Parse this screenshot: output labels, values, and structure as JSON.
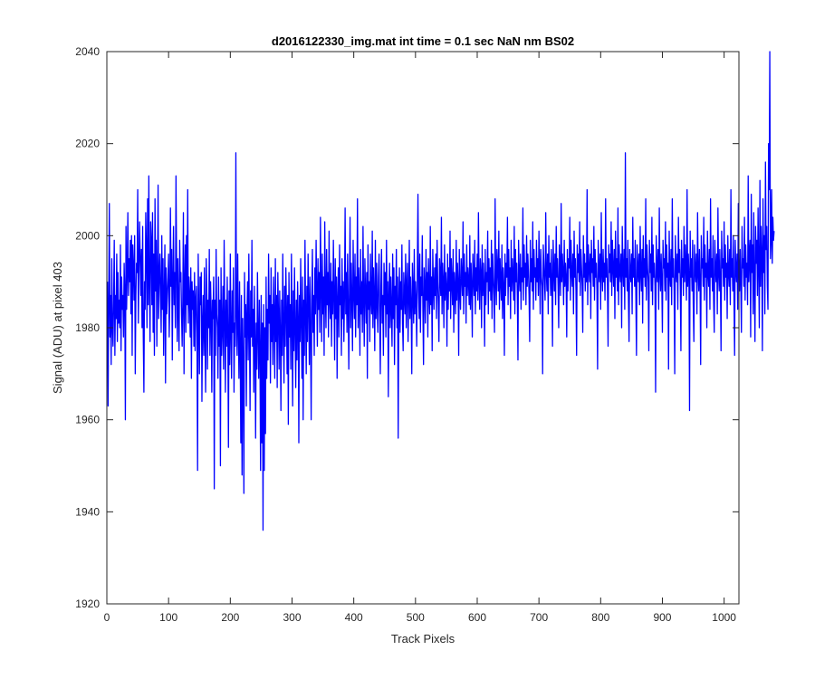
{
  "chart_data": {
    "type": "line",
    "title": "d2016122330_img.mat int time = 0.1 sec  NaN nm BS02",
    "xlabel": "Track Pixels",
    "ylabel": "Signal (ADU) at pixel 403",
    "xlim": [
      0,
      1024
    ],
    "ylim": [
      1920,
      2040
    ],
    "xticks": [
      0,
      100,
      200,
      300,
      400,
      500,
      600,
      700,
      800,
      900,
      1000
    ],
    "yticks": [
      1920,
      1940,
      1960,
      1980,
      2000,
      2020,
      2040
    ],
    "grid": false,
    "line_color": "#0000ff",
    "series": [
      {
        "x_start": 1,
        "x_step": 1,
        "values": [
          1990,
          1963,
          1985,
          2007,
          1978,
          1987,
          1972,
          1995,
          1980,
          1976,
          1986,
          1999,
          1974,
          1987,
          1982,
          1996,
          1977,
          1992,
          1981,
          1986,
          1980,
          1998,
          1975,
          1991,
          1984,
          1987,
          1978,
          1994,
          1988,
          1960,
          2002,
          1984,
          1992,
          2005,
          1987,
          1995,
          1990,
          1999,
          1983,
          2000,
          1974,
          1998,
          1993,
          1986,
          2000,
          1970,
          1987,
          1994,
          1992,
          2010,
          1981,
          1993,
          2003,
          1995,
          1987,
          1997,
          1980,
          2002,
          1978,
          1966,
          1990,
          1984,
          2005,
          1997,
          1980,
          2008,
          1985,
          2013,
          1990,
          1977,
          2003,
          1999,
          1985,
          2005,
          1979,
          1996,
          1974,
          2008,
          1988,
          1999,
          1976,
          1990,
          2011,
          1982,
          1991,
          1996,
          1988,
          1979,
          2000,
          1984,
          1995,
          1974,
          1987,
          1998,
          1968,
          1993,
          1983,
          1987,
          1991,
          1996,
          1978,
          1986,
          2006,
          1989,
          1997,
          1973,
          1991,
          2002,
          1985,
          1992,
          1980,
          2013,
          1994,
          1977,
          1995,
          1985,
          1975,
          1999,
          1990,
          1992,
          1983,
          1976,
          1986,
          2005,
          1970,
          1989,
          1998,
          1979,
          2000,
          1985,
          2010,
          1981,
          1991,
          1987,
          1978,
          1993,
          1969,
          1990,
          1984,
          1988,
          1976,
          1992,
          1975,
          1986,
          1989,
          1979,
          1949,
          1996,
          1983,
          1970,
          1991,
          1985,
          1992,
          1964,
          1981,
          1987,
          1974,
          1993,
          1978,
          1966,
          1995,
          1987,
          1971,
          1986,
          1980,
          1997,
          1974,
          1990,
          1983,
          1966,
          1986,
          1982,
          1991,
          1945,
          1986,
          1974,
          1997,
          1983,
          1980,
          1969,
          1991,
          1976,
          1986,
          1950,
          1993,
          1974,
          1980,
          1989,
          1971,
          1999,
          1983,
          1966,
          1986,
          1976,
          1991,
          1979,
          1954,
          1988,
          1972,
          1996,
          1979,
          1969,
          1988,
          1979,
          1993,
          1966,
          1981,
          1976,
          2018,
          1983,
          1974,
          1996,
          1980,
          1969,
          1990,
          1975,
          1955,
          1987,
          1948,
          1982,
          1971,
          1944,
          1992,
          1978,
          1985,
          1963,
          1983,
          1990,
          1973,
          1996,
          1980,
          1962,
          1988,
          1978,
          1999,
          1976,
          1984,
          1966,
          1989,
          1977,
          1956,
          1981,
          1971,
          1992,
          1979,
          1969,
          1986,
          1975,
          1949,
          1987,
          1955,
          1981,
          1936,
          1985,
          1949,
          1980,
          1957,
          1991,
          1969,
          1984,
          1973,
          1996,
          1981,
          1987,
          1968,
          1993,
          1977,
          1985,
          1972,
          1991,
          1982,
          1969,
          1995,
          1977,
          1987,
          1967,
          1992,
          1983,
          1971,
          1988,
          1979,
          1962,
          1986,
          1974,
          1996,
          1980,
          1968,
          1989,
          1976,
          1993,
          1984,
          1970,
          1987,
          1959,
          1992,
          1978,
          1985,
          1971,
          1996,
          1982,
          1963,
          1988,
          1975,
          1993,
          1980,
          1967,
          1986,
          1973,
          1990,
          1982,
          1955,
          1987,
          1977,
          1995,
          1981,
          1969,
          1991,
          1960,
          1986,
          1974,
          1999,
          1983,
          1970,
          1989,
          1977,
          1996,
          1985,
          1972,
          1991,
          1980,
          1960,
          1986,
          1997,
          1979,
          1987,
          1974,
          1993,
          1983,
          1999,
          1988,
          1976,
          1995,
          1984,
          1992,
          1979,
          2004,
          1989,
          1977,
          1996,
          1983,
          1991,
          1974,
          2003,
          1987,
          1980,
          1997,
          1985,
          1992,
          1978,
          2001,
          1986,
          1982,
          1994,
          1976,
          1990,
          1983,
          1999,
          1987,
          1973,
          1995,
          1982,
          1991,
          1969,
          1986,
          1993,
          1978,
          1998,
          1985,
          1989,
          1974,
          1995,
          1982,
          1990,
          1977,
          1987,
          2006,
          1983,
          1992,
          1979,
          1996,
          1985,
          1971,
          1989,
          2004,
          1980,
          1994,
          1986,
          1975,
          1999,
          1988,
          1982,
          1996,
          1978,
          1991,
          1985,
          2008,
          1980,
          1993,
          1987,
          1974,
          1997,
          1983,
          1990,
          1979,
          2002,
          1986,
          1976,
          1995,
          1988,
          1981,
          1992,
          1969,
          1998,
          1984,
          1990,
          1977,
          1996,
          1986,
          1983,
          2001,
          1980,
          1993,
          1987,
          1975,
          1999,
          1982,
          1994,
          1985,
          1979,
          1991,
          1996,
          1983,
          1970,
          1989,
          1997,
          1981,
          1987,
          1974,
          1994,
          1985,
          1992,
          1978,
          1999,
          1983,
          1990,
          1965,
          1987,
          1994,
          1980,
          1991,
          1984,
          1976,
          1996,
          1982,
          1993,
          1972,
          1989,
          1985,
          1997,
          1980,
          1991,
          1956,
          1986,
          1993,
          1979,
          1990,
          1984,
          1998,
          1981,
          1975,
          1992,
          1987,
          1983,
          1996,
          1980,
          1989,
          1994,
          1977,
          1986,
          1999,
          1982,
          1991,
          1985,
          1970,
          1994,
          1988,
          1981,
          1997,
          1983,
          1990,
          1986,
          1976,
          1993,
          2009,
          1988,
          1982,
          1996,
          1979,
          1991,
          1987,
          2000,
          1984,
          1972,
          1993,
          1989,
          1981,
          1997,
          1986,
          1992,
          1978,
          1995,
          1988,
          1983,
          2002,
          1985,
          1991,
          1975,
          1997,
          1989,
          1984,
          1993,
          1987,
          1996,
          1982,
          1999,
          1990,
          1985,
          1977,
          1995,
          1991,
          1987,
          2004,
          1983,
          1994,
          1990,
          1980,
          1998,
          1986,
          1992,
          1989,
          1976,
          1996,
          1984,
          1993,
          1988,
          2001,
          1982,
          1995,
          1990,
          1985,
          1997,
          1979,
          1992,
          1988,
          1983,
          1999,
          1986,
          1994,
          1990,
          1974,
          1997,
          1988,
          1984,
          1995,
          1991,
          1987,
          2003,
          1983,
          1996,
          1989,
          1992,
          1981,
          1998,
          1987,
          1993,
          1990,
          1985,
          2000,
          1984,
          1994,
          1989,
          1978,
          1996,
          1991,
          1987,
          1999,
          1983,
          1993,
          1988,
          1996,
          1986,
          2005,
          1990,
          1984,
          1995,
          1992,
          1980,
          1998,
          1987,
          1994,
          1989,
          1976,
          1997,
          1985,
          1992,
          1990,
          2001,
          1983,
          1995,
          1988,
          1993,
          1986,
          1999,
          1982,
          1996,
          1991,
          1987,
          1979,
          2008,
          1990,
          1985,
          1997,
          1993,
          1988,
          2001,
          1984,
          1995,
          1990,
          1986,
          1998,
          1982,
          1993,
          1989,
          1974,
          1996,
          1987,
          1994,
          1991,
          2004,
          1985,
          1997,
          1989,
          1993,
          1982,
          1999,
          1988,
          1995,
          1991,
          1986,
          2002,
          1983,
          1997,
          1990,
          1994,
          1987,
          1973,
          1999,
          1992,
          1988,
          1996,
          1984,
          1993,
          1990,
          2006,
          1986,
          1998,
          1991,
          1994,
          1985,
          2000,
          1989,
          1996,
          1992,
          1987,
          1977,
          1999,
          1990,
          1995,
          1988,
          2003,
          1984,
          1997,
          1991,
          1993,
          1986,
          1999,
          1990,
          1995,
          1987,
          2001,
          1993,
          1983,
          1997,
          1991,
          1989,
          1970,
          1998,
          1994,
          1990,
          1986,
          2005,
          1992,
          1988,
          1996,
          1983,
          2000,
          1991,
          1994,
          1987,
          1997,
          1990,
          1976,
          1999,
          1993,
          1988,
          1996,
          1985,
          2002,
          1991,
          1995,
          1989,
          1980,
          1998,
          1993,
          1987,
          2007,
          1990,
          1996,
          1992,
          1985,
          1999,
          1989,
          1994,
          1991,
          1978,
          1997,
          1988,
          1995,
          1993,
          2004,
          1986,
          1999,
          1992,
          1989,
          1996,
          1983,
          2001,
          1991,
          1995,
          1988,
          1974,
          1998,
          1992,
          1996,
          1990,
          2003,
          1987,
          1997,
          1993,
          1989,
          1979,
          2000,
          1991,
          1996,
          1988,
          1994,
          1990,
          2010,
          1985,
          1998,
          1993,
          1990,
          1996,
          1982,
          1999,
          1992,
          1995,
          1989,
          2002,
          1986,
          1997,
          1991,
          1994,
          1988,
          1971,
          1999,
          1993,
          1990,
          1996,
          1984,
          2005,
          1992,
          1988,
          1997,
          1990,
          1994,
          1986,
          2008,
          1991,
          1995,
          1989,
          1976,
          1998,
          1992,
          1996,
          1990,
          2003,
          1987,
          1999,
          1993,
          1989,
          1997,
          1982,
          2001,
          1991,
          1995,
          1988,
          2006,
          1985,
          1998,
          1992,
          1990,
          1996,
          1980,
          2002,
          1993,
          1989,
          1997,
          1984,
          2018,
          1991,
          1995,
          1988,
          1999,
          1986,
          1977,
          1997,
          1992,
          1990,
          1996,
          1983,
          2004,
          1991,
          1995,
          1989,
          1999,
          1987,
          1974,
          1998,
          1993,
          1990,
          1996,
          1985,
          2002,
          1992,
          1988,
          1997,
          1981,
          2000,
          1991,
          1995,
          1989,
          2008,
          1986,
          1998,
          1993,
          1990,
          1975,
          1999,
          1992,
          1996,
          1988,
          2004,
          1985,
          1998,
          1991,
          1994,
          1989,
          1966,
          2000,
          1993,
          1990,
          1997,
          1984,
          2006,
          1992,
          1988,
          1996,
          1990,
          1979,
          1999,
          1993,
          1995,
          1988,
          2003,
          1986,
          1998,
          1991,
          1994,
          1971,
          2001,
          1992,
          1989,
          1997,
          1985,
          2008,
          1991,
          1995,
          1988,
          1970,
          2000,
          1993,
          1990,
          1996,
          1984,
          2004,
          1992,
          1997,
          1989,
          1975,
          1999,
          1991,
          1995,
          1987,
          2002,
          1990,
          1998,
          1993,
          1986,
          2010,
          1989,
          1996,
          1992,
          1962,
          2001,
          1991,
          1995,
          1988,
          1999,
          1985,
          1977,
          1998,
          1993,
          1990,
          1996,
          1983,
          2005,
          1992,
          1988,
          1997,
          1990,
          1972,
          2000,
          1993,
          1995,
          1989,
          2004,
          1986,
          1998,
          1991,
          1994,
          1980,
          2001,
          1992,
          1989,
          1997,
          1984,
          2008,
          1991,
          1995,
          1988,
          2000,
          1986,
          1979,
          1999,
          1993,
          1990,
          1996,
          1983,
          2006,
          1992,
          1988,
          1997,
          1990,
          1975,
          2001,
          1993,
          1995,
          1989,
          2003,
          1986,
          1998,
          1991,
          1994,
          1982,
          2000,
          1992,
          1989,
          1997,
          1985,
          2010,
          1991,
          1995,
          1988,
          2000,
          1986,
          1974,
          1999,
          1993,
          1990,
          1996,
          1984,
          2007,
          1992,
          1988,
          1997,
          1990,
          1979,
          2002,
          1993,
          1995,
          1989,
          2004,
          1986,
          1998,
          1991,
          1994,
          1985,
          2013,
          1990,
          1996,
          1999,
          1978,
          2009,
          1992,
          1998,
          1983,
          2005,
          1990,
          1977,
          2002,
          1994,
          1999,
          1987,
          2006,
          1993,
          1980,
          2012,
          1989,
          2002,
          1996,
          1975,
          2008,
          1992,
          2000,
          1983,
          2016,
          1997,
          2002,
          1989,
          1984,
          2020,
          2010,
          2040,
          1995,
          1999,
          2010,
          1994,
          2004,
          1999,
          2001
        ]
      }
    ]
  }
}
